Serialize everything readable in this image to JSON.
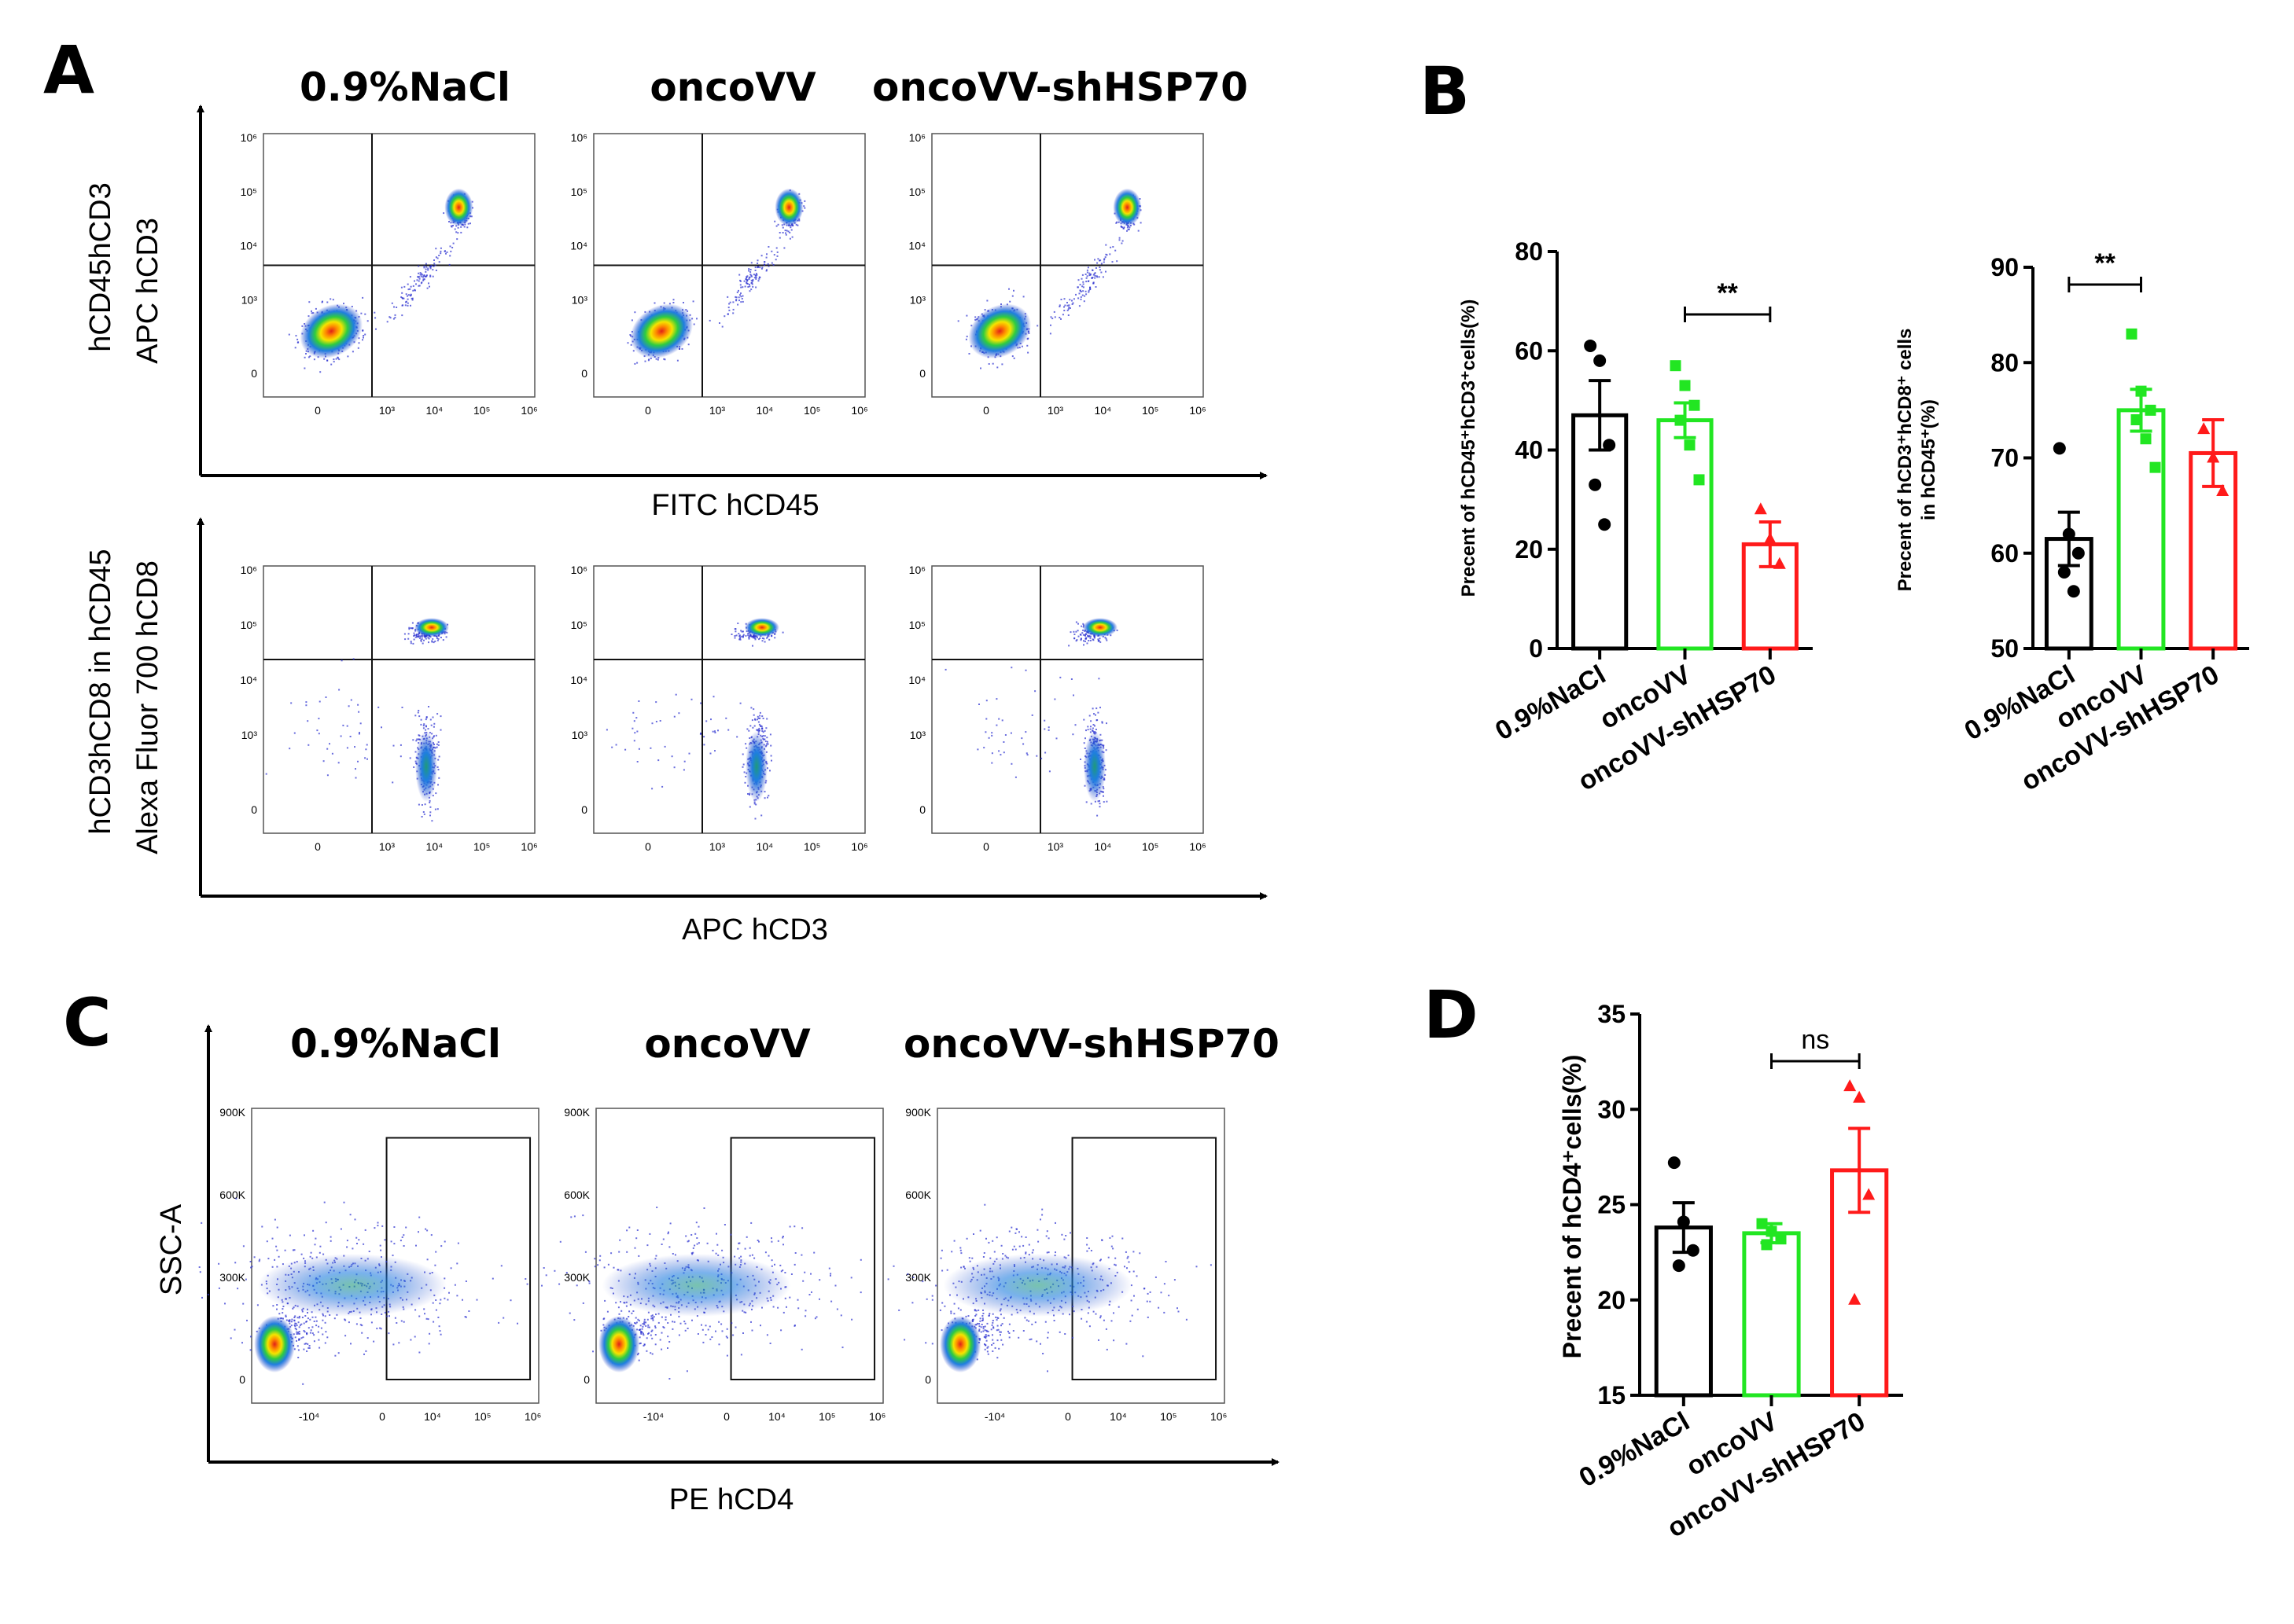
{
  "panels": {
    "A": "A",
    "B": "B",
    "C": "C",
    "D": "D"
  },
  "groups": [
    "0.9%NaCl",
    "oncoVV",
    "oncoVV-shHSP70"
  ],
  "colors": {
    "nacl": "#000000",
    "oncovv": "#22e622",
    "shhsp70": "#ff1a1a"
  },
  "flow_A_top": {
    "group_label": "hCD45hCD3",
    "y_label": "APC hCD3",
    "x_label": "FITC hCD45",
    "y_ticks": [
      "10⁶",
      "10⁵",
      "10⁴",
      "10³",
      "0"
    ],
    "x_ticks": [
      "0",
      "10³",
      "10⁴",
      "10⁵",
      "10⁶"
    ]
  },
  "flow_A_bottom": {
    "group_label": "hCD3hCD8 in hCD45",
    "y_label": "Alexa Fluor 700 hCD8",
    "x_label": "APC hCD3",
    "y_ticks": [
      "10⁶",
      "10⁵",
      "10⁴",
      "10³",
      "0"
    ],
    "x_ticks": [
      "0",
      "10³",
      "10⁴",
      "10⁵",
      "10⁶"
    ]
  },
  "flow_C": {
    "y_label": "SSC-A",
    "x_label": "PE hCD4",
    "y_ticks": [
      "900K",
      "600K",
      "300K",
      "0"
    ],
    "x_ticks": [
      "-10⁴",
      "0",
      "10⁴",
      "10⁵",
      "10⁶"
    ]
  },
  "chart_data": [
    {
      "id": "B1",
      "type": "bar",
      "categories": [
        "0.9%NaCl",
        "oncoVV",
        "oncoVV-shHSP70"
      ],
      "series": [
        {
          "name": "mean",
          "values": [
            47,
            46,
            21
          ],
          "sem": [
            7,
            3.5,
            4.5
          ]
        }
      ],
      "points": [
        [
          61,
          58,
          41,
          33,
          25
        ],
        [
          57,
          53,
          49,
          46,
          41,
          34
        ],
        [
          28,
          22,
          17
        ]
      ],
      "title": "",
      "xlabel": "",
      "ylabel": "Precent of hCD45⁺hCD3⁺cells(%)",
      "ylim": [
        0,
        80
      ],
      "yticks": [
        "0",
        "20",
        "40",
        "60",
        "80"
      ],
      "significance": {
        "from": 1,
        "to": 2,
        "label": "**"
      }
    },
    {
      "id": "B2",
      "type": "bar",
      "categories": [
        "0.9%NaCl",
        "oncoVV",
        "oncoVV-shHSP70"
      ],
      "series": [
        {
          "name": "mean",
          "values": [
            61.5,
            75,
            70.5
          ],
          "sem": [
            2.8,
            2.2,
            3.5
          ]
        }
      ],
      "points": [
        [
          71,
          62,
          60,
          58,
          56
        ],
        [
          83,
          77,
          75,
          74,
          72,
          69
        ],
        [
          73,
          70,
          66.5
        ]
      ],
      "title": "",
      "xlabel": "",
      "ylabel": "Precent of hCD3⁺hCD8⁺ cells in hCD45⁺(%)",
      "ylim": [
        50,
        90
      ],
      "yticks": [
        "50",
        "60",
        "70",
        "80",
        "90"
      ],
      "significance": {
        "from": 0,
        "to": 1,
        "label": "**"
      }
    },
    {
      "id": "D",
      "type": "bar",
      "categories": [
        "0.9%NaCl",
        "oncoVV",
        "oncoVV-shHSP70"
      ],
      "series": [
        {
          "name": "mean",
          "values": [
            23.8,
            23.5,
            26.8
          ],
          "sem": [
            1.3,
            0.5,
            2.2
          ]
        }
      ],
      "points": [
        [
          27.2,
          24.1,
          22.6,
          21.8
        ],
        [
          24,
          23.6,
          23.2,
          22.9
        ],
        [
          31.2,
          30.6,
          25.5,
          20
        ]
      ],
      "title": "",
      "xlabel": "",
      "ylabel": "Precent of hCD4⁺cells(%)",
      "ylim": [
        15,
        35
      ],
      "yticks": [
        "15",
        "20",
        "25",
        "30",
        "35"
      ],
      "significance": {
        "from": 1,
        "to": 2,
        "label": "ns"
      }
    }
  ]
}
